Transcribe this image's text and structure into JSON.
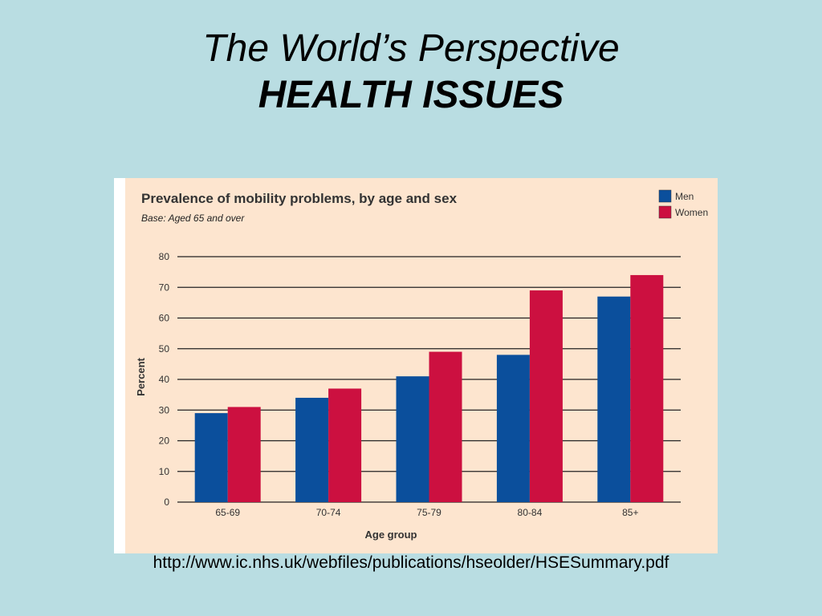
{
  "slide": {
    "title_line1": "The World’s Perspective",
    "title_line2": "HEALTH ISSUES",
    "source": "http://www.ic.nhs.uk/webfiles/publications/hseolder/HSESummary.pdf"
  },
  "colors": {
    "background": "#b9dde2",
    "panel": "#fde5cf",
    "men": "#0b4f9c",
    "women": "#cc1040"
  },
  "chart_data": {
    "type": "bar",
    "title": "Prevalence of mobility problems, by age and sex",
    "subtitle": "Base: Aged 65 and over",
    "xlabel": "Age group",
    "ylabel": "Percent",
    "categories": [
      "65-69",
      "70-74",
      "75-79",
      "80-84",
      "85+"
    ],
    "series": [
      {
        "name": "Men",
        "color": "#0b4f9c",
        "values": [
          29,
          34,
          41,
          48,
          67
        ]
      },
      {
        "name": "Women",
        "color": "#cc1040",
        "values": [
          31,
          37,
          49,
          69,
          74
        ]
      }
    ],
    "ylim": [
      0,
      80
    ],
    "yticks": [
      0,
      10,
      20,
      30,
      40,
      50,
      60,
      70,
      80
    ],
    "grid": true,
    "legend": "top-right"
  }
}
